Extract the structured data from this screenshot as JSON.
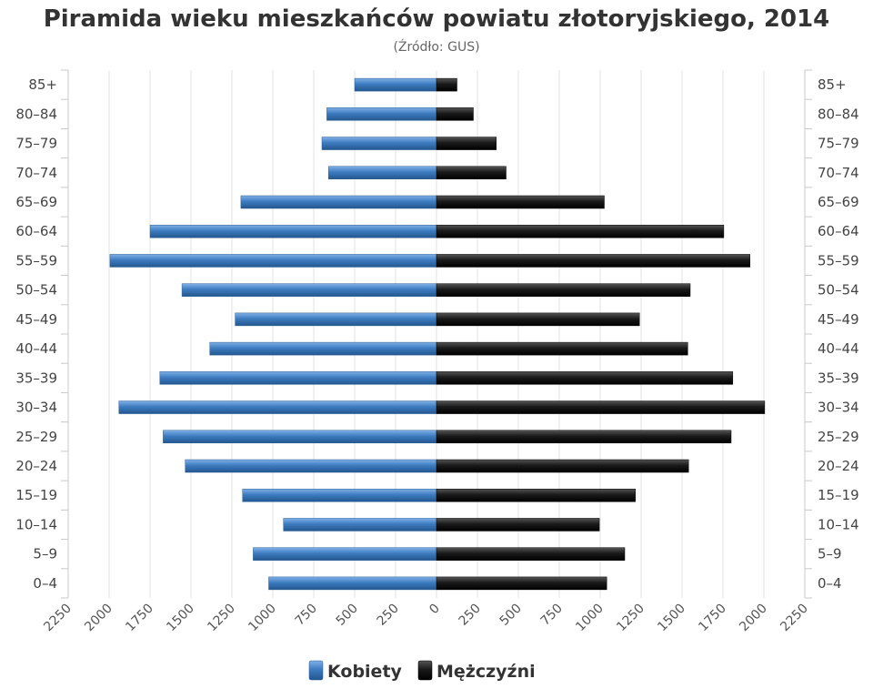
{
  "chart_data": {
    "type": "bar",
    "orientation": "horizontal",
    "title": "Piramida wieku mieszkańców powiatu złotoryjskiego, 2014",
    "subtitle": "(Źródło: GUS)",
    "categories": [
      "0–4",
      "5–9",
      "10–14",
      "15–19",
      "20–24",
      "25–29",
      "30–34",
      "35–39",
      "40–44",
      "45–49",
      "50–54",
      "55–59",
      "60–64",
      "65–69",
      "70–74",
      "75–79",
      "80–84",
      "85+"
    ],
    "xlim": [
      -2250,
      2250
    ],
    "ticks": [
      -2250,
      -2000,
      -1750,
      -1500,
      -1250,
      -1000,
      -750,
      -500,
      -250,
      0,
      250,
      500,
      750,
      1000,
      1250,
      1500,
      1750,
      2000,
      2250
    ],
    "tick_labels": [
      "2250",
      "2000",
      "1750",
      "1500",
      "1250",
      "1000",
      "750",
      "500",
      "250",
      "0",
      "250",
      "500",
      "750",
      "1000",
      "1250",
      "1500",
      "1750",
      "2000",
      "2250"
    ],
    "grid": true,
    "legend_position": "bottom-center",
    "series": [
      {
        "name": "Kobiety",
        "color": "#3d7cc0",
        "side": "left",
        "values": [
          1025,
          1120,
          935,
          1185,
          1535,
          1670,
          1940,
          1690,
          1385,
          1230,
          1555,
          1995,
          1750,
          1195,
          660,
          700,
          670,
          500
        ]
      },
      {
        "name": "Mężczyźni",
        "color": "#1a1a1a",
        "side": "right",
        "values": [
          1040,
          1150,
          995,
          1215,
          1540,
          1800,
          2005,
          1810,
          1535,
          1240,
          1550,
          1915,
          1755,
          1025,
          425,
          365,
          225,
          125
        ]
      }
    ]
  }
}
